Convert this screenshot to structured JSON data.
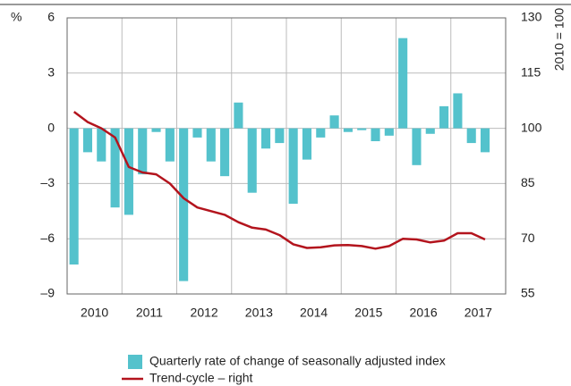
{
  "chart_data": {
    "type": "bar-line",
    "ylabel": "%",
    "y2label": "2010 = 100",
    "categories": [
      "2010",
      null,
      null,
      null,
      "2011",
      null,
      null,
      null,
      "2012",
      null,
      null,
      null,
      "2013",
      null,
      null,
      null,
      "2014",
      null,
      null,
      null,
      "2015",
      null,
      null,
      null,
      "2016",
      null,
      null,
      null,
      "2017",
      null,
      null,
      null
    ],
    "series": [
      {
        "name": "Quarterly rate of change of seasonally adjusted index",
        "type": "bar",
        "color": "#54c2cc",
        "values": [
          -7.4,
          -1.3,
          -1.8,
          -4.3,
          -4.7,
          -2.5,
          -0.2,
          -1.8,
          -8.3,
          -0.5,
          -1.8,
          -2.6,
          1.4,
          -3.5,
          -1.1,
          -0.8,
          -4.1,
          -1.7,
          -0.5,
          0.7,
          -0.2,
          -0.1,
          -0.7,
          -0.4,
          4.9,
          -2.0,
          -0.3,
          1.2,
          1.9,
          -0.8,
          -1.3,
          null
        ]
      },
      {
        "name": "Trend-cycle – right",
        "type": "line",
        "axis": "y2",
        "color": "#b3141d",
        "values": [
          104.5,
          101.7,
          100,
          97.5,
          89.5,
          88,
          87.5,
          85,
          81,
          78.5,
          77.5,
          76.5,
          74.5,
          73,
          72.5,
          71,
          68.5,
          67.5,
          67.7,
          68.2,
          68.3,
          68,
          67.3,
          68,
          70,
          69.8,
          69,
          69.5,
          71.5,
          71.5,
          69.8,
          null
        ]
      }
    ],
    "ylim": [
      -9,
      6
    ],
    "yticks": [
      {
        "value": -9,
        "label": "–9"
      },
      {
        "value": -6,
        "label": "–6"
      },
      {
        "value": -3,
        "label": "–3"
      },
      0,
      3,
      6
    ],
    "y2lim": [
      55,
      130
    ],
    "y2ticks": [
      55,
      70,
      85,
      100,
      115,
      130
    ],
    "grid": true
  }
}
